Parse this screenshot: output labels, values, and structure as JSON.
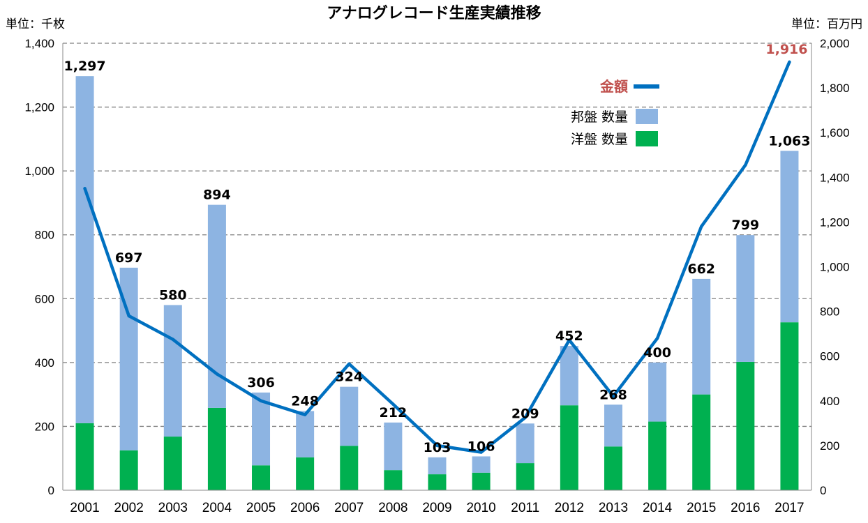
{
  "chart_data": {
    "type": "bar",
    "title": "アナログレコード生産実績推移",
    "y_left_unit": "単位：千枚",
    "y_right_unit": "単位：百万円",
    "categories": [
      "2001",
      "2002",
      "2003",
      "2004",
      "2005",
      "2006",
      "2007",
      "2008",
      "2009",
      "2010",
      "2011",
      "2012",
      "2013",
      "2014",
      "2015",
      "2016",
      "2017"
    ],
    "totals": [
      1297,
      697,
      580,
      894,
      306,
      248,
      324,
      212,
      103,
      106,
      209,
      452,
      268,
      400,
      662,
      799,
      1063
    ],
    "total_labels": [
      "1,297",
      "697",
      "580",
      "894",
      "306",
      "248",
      "324",
      "212",
      "103",
      "106",
      "209",
      "452",
      "268",
      "400",
      "662",
      "799",
      "1,063"
    ],
    "series": [
      {
        "name": "洋盤 数量",
        "axis": "left",
        "color": "#00b050",
        "values": [
          210,
          125,
          168,
          258,
          78,
          103,
          139,
          63,
          50,
          55,
          85,
          266,
          137,
          215,
          300,
          402,
          526
        ]
      },
      {
        "name": "邦盤 数量",
        "axis": "left",
        "color": "#8db4e2",
        "values": [
          1087,
          572,
          412,
          636,
          228,
          145,
          185,
          149,
          53,
          51,
          124,
          186,
          131,
          185,
          362,
          397,
          537
        ]
      },
      {
        "name": "金額",
        "axis": "right",
        "type": "line",
        "color": "#0070c0",
        "values": [
          1350,
          780,
          675,
          520,
          400,
          338,
          565,
          385,
          200,
          170,
          325,
          672,
          420,
          680,
          1180,
          1455,
          1916
        ]
      }
    ],
    "line_end_label": "1,916",
    "line_end_label_color": "#c0504d",
    "ylim_left": [
      0,
      1400
    ],
    "ylim_right": [
      0,
      2000
    ],
    "yticks_left": [
      "0",
      "200",
      "400",
      "600",
      "800",
      "1,000",
      "1,200",
      "1,400"
    ],
    "yticks_right": [
      "0",
      "200",
      "400",
      "600",
      "800",
      "1,000",
      "1,200",
      "1,400",
      "1,600",
      "1,800",
      "2,000"
    ],
    "grid": true,
    "legend_position": "top-right",
    "legend": {
      "amount": "金額",
      "domestic": "邦盤 数量",
      "foreign": "洋盤 数量"
    },
    "legend_amount_color": "#c0504d"
  }
}
